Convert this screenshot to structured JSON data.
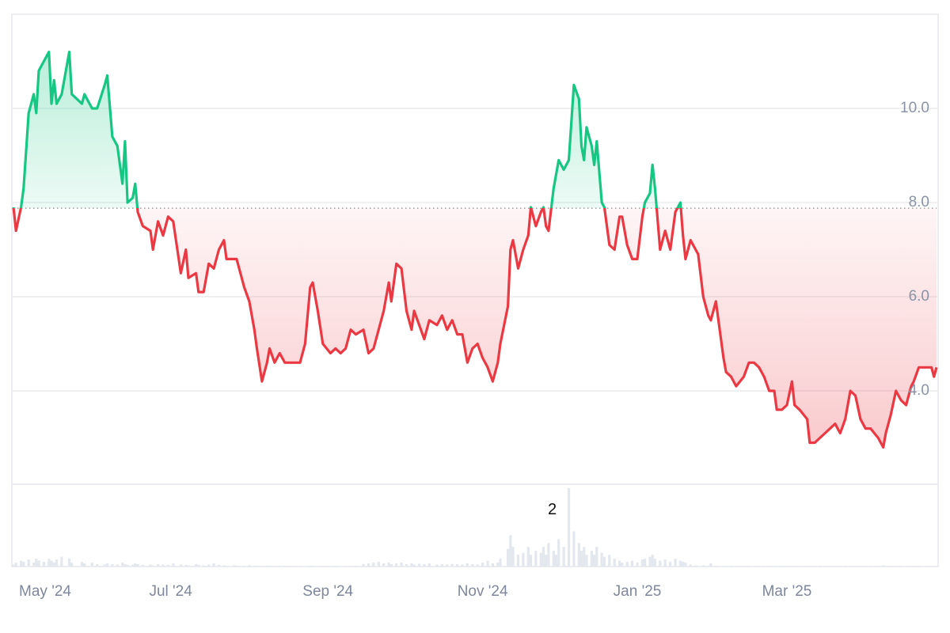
{
  "chart_data": {
    "type": "line",
    "x": [
      0,
      1,
      3,
      4,
      6,
      8,
      9,
      10,
      12,
      14,
      15,
      16,
      17,
      19,
      22,
      23,
      27,
      28,
      31,
      33,
      36,
      37,
      39,
      41,
      43,
      44,
      45,
      47,
      48,
      49,
      51,
      54,
      55,
      57,
      59,
      61,
      63,
      66,
      68,
      69,
      72,
      73,
      75,
      77,
      79,
      81,
      83,
      84,
      87,
      88,
      91,
      93,
      95,
      96,
      98,
      100,
      101,
      103,
      105,
      107,
      111,
      113,
      115,
      117,
      118,
      120,
      122,
      125,
      127,
      129,
      131,
      133,
      135,
      138,
      140,
      142,
      144,
      146,
      148,
      149,
      151,
      153,
      155,
      157,
      158,
      160,
      162,
      164,
      167,
      169,
      171,
      173,
      175,
      177,
      179,
      181,
      183,
      185,
      187,
      189,
      191,
      192,
      195,
      196,
      197,
      199,
      201,
      203,
      204,
      206,
      208,
      209,
      210,
      211,
      213,
      214,
      215,
      217,
      219,
      221,
      223,
      224,
      225,
      226,
      228,
      229,
      230,
      232,
      233,
      235,
      237,
      239,
      240,
      242,
      244,
      246,
      248,
      249,
      251,
      252,
      253,
      255,
      257,
      259,
      261,
      263,
      264,
      265,
      267,
      269,
      270,
      272,
      274,
      275,
      277,
      278,
      280,
      281,
      283,
      285,
      288,
      290,
      292,
      294,
      296,
      298,
      300,
      301,
      303,
      305,
      307,
      308,
      310,
      313,
      314,
      316,
      318,
      320,
      322,
      324,
      326,
      328,
      330,
      332,
      334,
      336,
      338,
      341,
      343,
      344,
      346,
      348,
      350,
      352,
      354,
      355,
      357,
      360,
      362,
      363,
      364
    ],
    "values": [
      7.9,
      7.4,
      7.9,
      8.3,
      9.9,
      10.3,
      9.9,
      10.8,
      11.0,
      11.2,
      10.1,
      10.6,
      10.1,
      10.3,
      11.2,
      10.3,
      10.1,
      10.3,
      10.0,
      10.0,
      10.5,
      10.7,
      9.4,
      9.2,
      8.4,
      9.3,
      8.0,
      8.1,
      8.4,
      7.8,
      7.5,
      7.4,
      7.0,
      7.6,
      7.3,
      7.7,
      7.6,
      6.5,
      7.0,
      6.4,
      6.5,
      6.1,
      6.1,
      6.7,
      6.6,
      7.0,
      7.2,
      6.8,
      6.8,
      6.8,
      6.2,
      5.9,
      5.3,
      4.9,
      4.2,
      4.6,
      4.9,
      4.6,
      4.8,
      4.6,
      4.6,
      4.6,
      5.0,
      6.2,
      6.3,
      5.7,
      5.0,
      4.8,
      4.9,
      4.8,
      4.9,
      5.3,
      5.2,
      5.3,
      4.8,
      4.9,
      5.3,
      5.7,
      6.3,
      5.9,
      6.7,
      6.6,
      5.7,
      5.3,
      5.7,
      5.4,
      5.1,
      5.5,
      5.4,
      5.6,
      5.3,
      5.5,
      5.2,
      5.2,
      4.6,
      4.9,
      5.0,
      4.7,
      4.5,
      4.2,
      4.6,
      5.0,
      5.8,
      7.0,
      7.2,
      6.6,
      7.0,
      7.3,
      7.9,
      7.5,
      7.8,
      7.9,
      7.5,
      7.4,
      8.3,
      8.6,
      8.9,
      8.7,
      8.9,
      10.5,
      10.2,
      9.2,
      8.9,
      9.6,
      9.2,
      8.8,
      9.3,
      8.0,
      7.9,
      7.1,
      7.0,
      7.7,
      7.7,
      7.1,
      6.8,
      6.8,
      7.7,
      8.0,
      8.2,
      8.8,
      8.3,
      7.0,
      7.4,
      7.0,
      7.8,
      8.0,
      7.3,
      6.8,
      7.2,
      7.0,
      6.9,
      6.0,
      5.6,
      5.5,
      5.9,
      5.5,
      4.7,
      4.4,
      4.3,
      4.1,
      4.3,
      4.6,
      4.6,
      4.5,
      4.3,
      4.0,
      4.0,
      3.6,
      3.6,
      3.7,
      4.2,
      3.7,
      3.6,
      3.4,
      2.9,
      2.9,
      3.0,
      3.1,
      3.2,
      3.3,
      3.1,
      3.4,
      4.0,
      3.9,
      3.4,
      3.2,
      3.2,
      3.0,
      2.8,
      3.1,
      3.5,
      4.0,
      3.8,
      3.7,
      4.1,
      4.2,
      4.5,
      4.5,
      4.5,
      4.3,
      4.5
    ],
    "baseline": 7.88,
    "colors": {
      "above": "#16c784",
      "below": "#ea3943"
    },
    "xlim": [
      0,
      364
    ],
    "xticks": [
      {
        "value": 1,
        "label": "May '24"
      },
      {
        "value": 62,
        "label": "Jul '24"
      },
      {
        "value": 124,
        "label": "Sep '24"
      },
      {
        "value": 185,
        "label": "Nov '24"
      },
      {
        "value": 246,
        "label": "Jan '25"
      },
      {
        "value": 305,
        "label": "Mar '25"
      }
    ],
    "ylim": [
      2,
      12
    ],
    "yticks": [
      {
        "value": 4,
        "label": "4.0"
      },
      {
        "value": 6,
        "label": "6.0"
      },
      {
        "value": 8,
        "label": "8.0"
      },
      {
        "value": 10,
        "label": "10.0"
      }
    ],
    "grid": true,
    "volume": {
      "color": "#e3e7ee",
      "ylim": [
        0,
        2.1
      ],
      "values": [
        0.05,
        0.1,
        0.15,
        0.12,
        0.18,
        0.1,
        0.2,
        0.15,
        0.12,
        0.2,
        0.15,
        0.1,
        0.18,
        0.25,
        0.2,
        0.1,
        0.12,
        0.08,
        0.1,
        0.06,
        0.05,
        0.08,
        0.06,
        0.05,
        0.1,
        0.06,
        0.04,
        0.05,
        0.08,
        0.06,
        0.04,
        0.05,
        0.03,
        0.06,
        0.05,
        0.04,
        0.08,
        0.05,
        0.04,
        0.03,
        0.06,
        0.04,
        0.03,
        0.05,
        0.08,
        0.04,
        0.03,
        0.02,
        0.03,
        0.02,
        0.02,
        0.03,
        0.02,
        0.02,
        0.01,
        0.02,
        0.02,
        0.01,
        0.02,
        0.02,
        0.01,
        0.02,
        0.01,
        0.02,
        0.02,
        0.01,
        0.02,
        0.01,
        0.02,
        0.01,
        0.02,
        0.01,
        0.02,
        0.06,
        0.08,
        0.1,
        0.12,
        0.08,
        0.1,
        0.06,
        0.08,
        0.1,
        0.06,
        0.08,
        0.05,
        0.07,
        0.06,
        0.08,
        0.05,
        0.06,
        0.05,
        0.07,
        0.06,
        0.05,
        0.08,
        0.06,
        0.05,
        0.1,
        0.15,
        0.08,
        0.1,
        0.2,
        0.45,
        0.8,
        0.5,
        0.3,
        0.35,
        0.5,
        0.3,
        0.4,
        0.35,
        0.5,
        0.3,
        0.6,
        0.4,
        0.3,
        0.7,
        0.5,
        2,
        0.9,
        0.6,
        0.4,
        0.5,
        0.3,
        0.4,
        0.3,
        0.5,
        0.35,
        0.25,
        0.3,
        0.2,
        0.15,
        0.1,
        0.12,
        0.15,
        0.1,
        0.18,
        0.2,
        0.25,
        0.3,
        0.2,
        0.15,
        0.18,
        0.12,
        0.2,
        0.15,
        0.12,
        0.1,
        0.05,
        0.03,
        0.02,
        0.03,
        0.02,
        0.08,
        0.02,
        0.01,
        0.02,
        0.01,
        0.02,
        0.01,
        0.01,
        0.02,
        0.01,
        0.01,
        0.02,
        0.01,
        0.01,
        0.02,
        0.01,
        0.01,
        0.01,
        0.01,
        0.02,
        0.01,
        0.01,
        0.01,
        0.02,
        0.01,
        0.01,
        0.01,
        0.01,
        0.02,
        0.01,
        0.01,
        0.01,
        0.01,
        0.02,
        0.01,
        0.03,
        0.02,
        0.01,
        0.01,
        0.02,
        0.01,
        0.01,
        0.01,
        0.02,
        0.01,
        0.01,
        0.01,
        0.01
      ]
    }
  }
}
